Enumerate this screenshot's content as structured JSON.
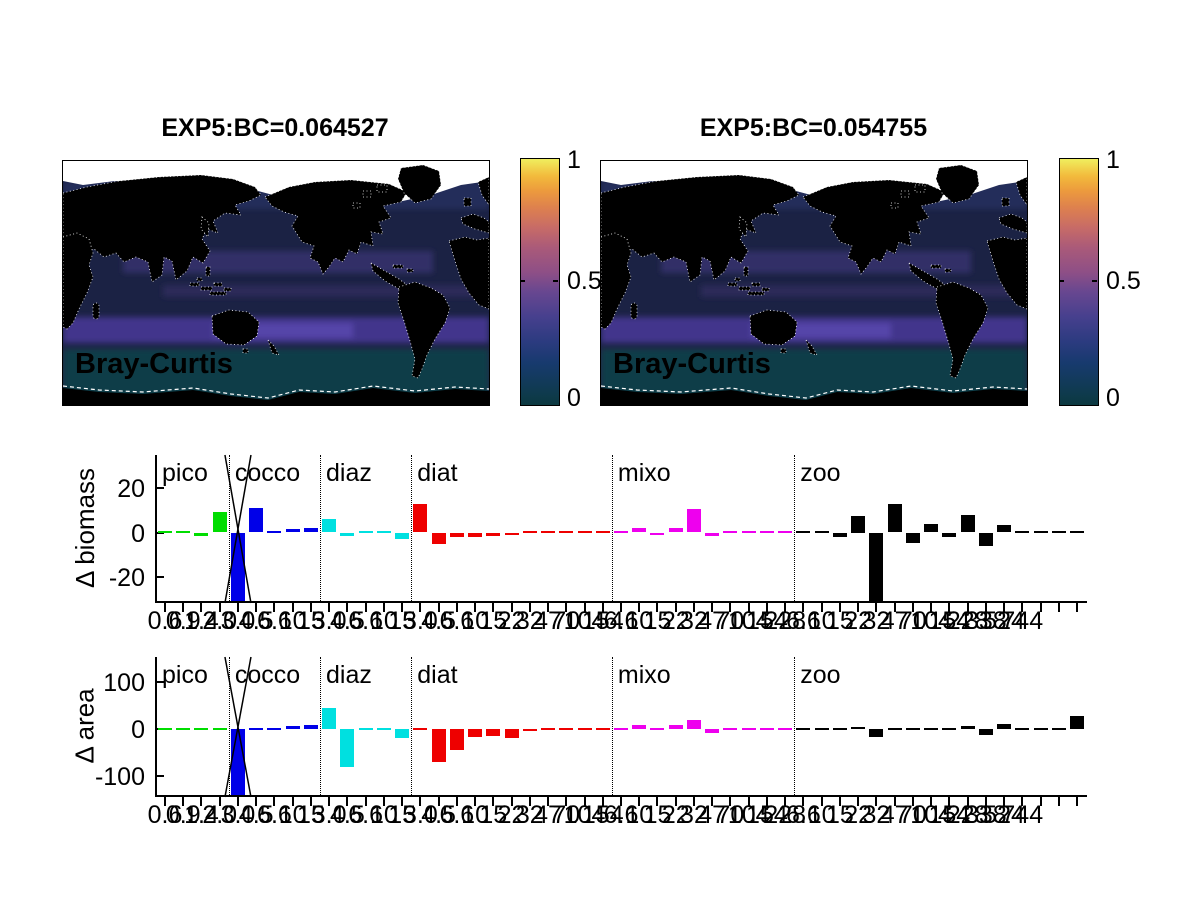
{
  "maps": [
    {
      "title": "EXP5:BC=0.064527",
      "label": "Bray-Curtis"
    },
    {
      "title": "EXP5:BC=0.054755",
      "label": "Bray-Curtis"
    }
  ],
  "colorbar": {
    "tick_top": "1",
    "tick_mid": "0.5",
    "tick_bottom": "0",
    "min": 0,
    "max": 1,
    "colormap_hint": [
      "#0b3940",
      "#173a6e",
      "#47408e",
      "#8e4f86",
      "#c76b67",
      "#ec9a3d",
      "#f0ee5e"
    ]
  },
  "chart_data": [
    {
      "type": "heatmap",
      "subtype": "global-map",
      "title": "EXP5:BC=0.064527",
      "annotation": "Bray-Curtis",
      "value_range": [
        0,
        1
      ],
      "colorbar_ticks": [
        0,
        0.5,
        1
      ],
      "description": "Bray-Curtis dissimilarity map, Pacific-centered; ocean values mostly 0-0.2 (dark blue), brighter purple band in Southern Ocean and North Pacific; land black; polar ice white"
    },
    {
      "type": "heatmap",
      "subtype": "global-map",
      "title": "EXP5:BC=0.054755",
      "annotation": "Bray-Curtis",
      "value_range": [
        0,
        1
      ],
      "colorbar_ticks": [
        0,
        0.5,
        1
      ],
      "description": "Bray-Curtis dissimilarity map, Pacific-centered; ocean values mostly 0-0.2 (dark blue), brighter purple band in Southern Ocean and North Pacific; land black; polar ice white"
    },
    {
      "type": "bar",
      "ylabel": "Δ biomass",
      "ylim": [
        -30.8,
        34.8
      ],
      "yticks": [
        {
          "v": 20,
          "label": "20"
        },
        {
          "v": 0,
          "label": "0"
        },
        {
          "v": -20,
          "label": "-20"
        }
      ],
      "groups": [
        {
          "name": "pico",
          "color": "#00dd00",
          "sizes": [
            "0.6",
            "0.9",
            "1.4",
            "2.0"
          ],
          "values": [
            0.7,
            0.7,
            -1.5,
            9
          ]
        },
        {
          "name": "cocco",
          "color": "#0000e8",
          "sizes": [
            "3.0",
            "4.5",
            "6.6",
            "10",
            "15"
          ],
          "values": [
            -55,
            11,
            0.3,
            1.5,
            2
          ],
          "clipped": [
            0
          ]
        },
        {
          "name": "diaz",
          "color": "#00e0e0",
          "sizes": [
            "3.0",
            "4.5",
            "6.6",
            "10",
            "15"
          ],
          "values": [
            6,
            -1.5,
            0.3,
            0.3,
            -3
          ]
        },
        {
          "name": "diat",
          "color": "#ee0000",
          "sizes": [
            "3.0",
            "4.5",
            "6.6",
            "10",
            "15",
            "22",
            "32",
            "47",
            "70",
            "104",
            "154"
          ],
          "values": [
            13,
            -5,
            -2,
            -1.8,
            -1.5,
            -1,
            -0.5,
            0.3,
            0.3,
            0.3,
            0.3
          ]
        },
        {
          "name": "mixo",
          "color": "#ee00ee",
          "sizes": [
            "6.6",
            "10",
            "15",
            "22",
            "32",
            "47",
            "70",
            "104",
            "154",
            "228"
          ],
          "values": [
            0.3,
            2,
            -1,
            2,
            10.5,
            -1.5,
            0.3,
            0.3,
            0.3,
            0.3
          ]
        },
        {
          "name": "zoo",
          "color": "#000000",
          "sizes": [
            "6.6",
            "10",
            "15",
            "22",
            "32",
            "47",
            "70",
            "104",
            "154",
            "228",
            "338",
            "524",
            "744",
            "",
            "",
            ""
          ],
          "values": [
            -0.8,
            0.3,
            -2.2,
            7.5,
            -31,
            13,
            -4.5,
            3.7,
            -2,
            8,
            -6,
            3.5,
            0.3,
            -0.8,
            -0.8,
            -0.8
          ]
        }
      ]
    },
    {
      "type": "bar",
      "ylabel": "Δ area",
      "ylim": [
        -140,
        153
      ],
      "yticks": [
        {
          "v": 100,
          "label": "100"
        },
        {
          "v": 0,
          "label": "0"
        },
        {
          "v": -100,
          "label": "-100"
        }
      ],
      "groups": [
        {
          "name": "pico",
          "color": "#00dd00",
          "sizes": [
            "0.6",
            "0.9",
            "1.4",
            "2.0"
          ],
          "values": [
            1,
            0.5,
            -1,
            1.5
          ]
        },
        {
          "name": "cocco",
          "color": "#0000e8",
          "sizes": [
            "3.0",
            "4.5",
            "6.6",
            "10",
            "15"
          ],
          "values": [
            -145,
            1,
            3,
            6,
            9
          ],
          "clipped": [
            0
          ]
        },
        {
          "name": "diaz",
          "color": "#00e0e0",
          "sizes": [
            "3.0",
            "4.5",
            "6.6",
            "10",
            "15"
          ],
          "values": [
            45,
            -80,
            0.5,
            0.5,
            -20
          ]
        },
        {
          "name": "diat",
          "color": "#ee0000",
          "sizes": [
            "3.0",
            "4.5",
            "6.6",
            "10",
            "15",
            "22",
            "32",
            "47",
            "70",
            "104",
            "154"
          ],
          "values": [
            -1,
            -70,
            -45,
            -18,
            -14,
            -20,
            -5,
            0.5,
            0.5,
            0.5,
            0.5
          ]
        },
        {
          "name": "mixo",
          "color": "#ee00ee",
          "sizes": [
            "6.6",
            "10",
            "15",
            "22",
            "32",
            "47",
            "70",
            "104",
            "154",
            "228"
          ],
          "values": [
            0.5,
            9,
            0.5,
            9,
            20,
            -9,
            -3,
            0.5,
            0.5,
            0.5
          ]
        },
        {
          "name": "zoo",
          "color": "#000000",
          "sizes": [
            "6.6",
            "10",
            "15",
            "22",
            "32",
            "47",
            "70",
            "104",
            "154",
            "228",
            "338",
            "524",
            "744",
            "",
            "",
            ""
          ],
          "values": [
            -2,
            -3,
            0.5,
            5,
            -17,
            0.5,
            0.5,
            4,
            0.5,
            7,
            -13,
            11,
            0.5,
            3,
            0.5,
            28
          ]
        }
      ]
    }
  ]
}
